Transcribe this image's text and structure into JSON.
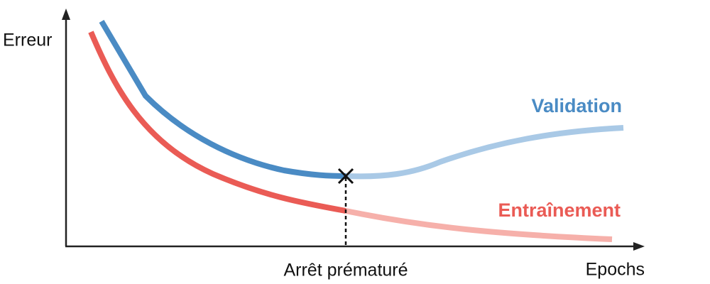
{
  "axes": {
    "y_label": "Erreur",
    "x_label": "Epochs"
  },
  "stop_label": "Arrêt prématuré",
  "curves": {
    "validation": "Validation",
    "training": "Entraînement"
  }
}
